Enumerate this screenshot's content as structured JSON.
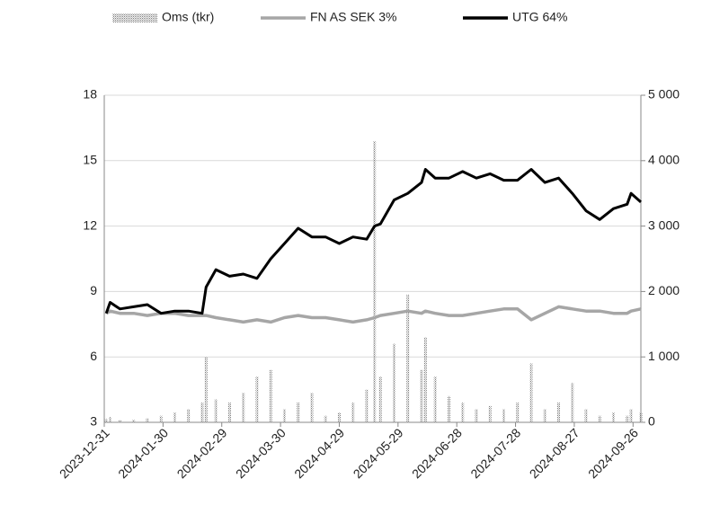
{
  "chart_data": {
    "type": "bar-line",
    "x": [
      "2024-01-01",
      "2024-01-03",
      "2024-01-08",
      "2024-01-15",
      "2024-01-22",
      "2024-01-29",
      "2024-02-05",
      "2024-02-12",
      "2024-02-19",
      "2024-02-21",
      "2024-02-26",
      "2024-03-04",
      "2024-03-11",
      "2024-03-18",
      "2024-03-25",
      "2024-04-01",
      "2024-04-08",
      "2024-04-15",
      "2024-04-22",
      "2024-04-29",
      "2024-05-06",
      "2024-05-13",
      "2024-05-17",
      "2024-05-20",
      "2024-05-27",
      "2024-06-03",
      "2024-06-10",
      "2024-06-12",
      "2024-06-17",
      "2024-06-24",
      "2024-07-01",
      "2024-07-08",
      "2024-07-15",
      "2024-07-22",
      "2024-07-29",
      "2024-08-05",
      "2024-08-12",
      "2024-08-19",
      "2024-08-26",
      "2024-09-02",
      "2024-09-09",
      "2024-09-16",
      "2024-09-23",
      "2024-09-25",
      "2024-09-30"
    ],
    "series": [
      {
        "name": "Oms (tkr)",
        "color": "#8c8c8c",
        "kind": "bar",
        "axis": "y2",
        "values": [
          50,
          80,
          30,
          40,
          60,
          100,
          150,
          200,
          300,
          1000,
          350,
          300,
          450,
          700,
          800,
          200,
          300,
          450,
          100,
          150,
          300,
          500,
          4300,
          700,
          1200,
          1950,
          800,
          1300,
          700,
          400,
          300,
          200,
          250,
          200,
          300,
          900,
          200,
          300,
          600,
          200,
          100,
          150,
          100,
          200,
          150
        ]
      },
      {
        "name": "FN AS SEK 3%",
        "color": "#a6a6a6",
        "kind": "line",
        "values": [
          8.0,
          8.1,
          8.0,
          8.0,
          7.9,
          8.0,
          8.0,
          7.9,
          7.9,
          7.9,
          7.8,
          7.7,
          7.6,
          7.7,
          7.6,
          7.8,
          7.9,
          7.8,
          7.8,
          7.7,
          7.6,
          7.7,
          7.8,
          7.9,
          8.0,
          8.1,
          8.0,
          8.1,
          8.0,
          7.9,
          7.9,
          8.0,
          8.1,
          8.2,
          8.2,
          7.7,
          8.0,
          8.3,
          8.2,
          8.1,
          8.1,
          8.0,
          8.0,
          8.1,
          8.2
        ]
      },
      {
        "name": "UTG 64%",
        "color": "#000000",
        "kind": "line",
        "values": [
          8.0,
          8.5,
          8.2,
          8.3,
          8.4,
          8.0,
          8.1,
          8.1,
          8.0,
          9.2,
          10.0,
          9.7,
          9.8,
          9.6,
          10.5,
          11.2,
          11.9,
          11.5,
          11.5,
          11.2,
          11.5,
          11.4,
          12.0,
          12.1,
          13.2,
          13.5,
          14.0,
          14.6,
          14.2,
          14.2,
          14.5,
          14.2,
          14.4,
          14.1,
          14.1,
          14.6,
          14.0,
          14.2,
          13.5,
          12.7,
          12.3,
          12.8,
          13.0,
          13.5,
          13.1
        ]
      }
    ],
    "xlim": [
      "2023-12-31",
      "2024-09-30"
    ],
    "xticks": [
      "2023-12-31",
      "2024-01-30",
      "2024-02-29",
      "2024-03-30",
      "2024-04-29",
      "2024-05-29",
      "2024-06-28",
      "2024-07-28",
      "2024-08-27",
      "2024-09-26"
    ],
    "ylim": [
      3,
      18
    ],
    "yticks": [
      3,
      6,
      9,
      12,
      15,
      18
    ],
    "y2lim": [
      0,
      5000
    ],
    "y2ticks": [
      0,
      {
        "value": 1000,
        "label": "1 000"
      },
      {
        "value": 2000,
        "label": "2 000"
      },
      {
        "value": 3000,
        "label": "3 000"
      },
      {
        "value": 4000,
        "label": "4 000"
      },
      {
        "value": 5000,
        "label": "5 000"
      }
    ],
    "grid": true,
    "legend": "top"
  }
}
